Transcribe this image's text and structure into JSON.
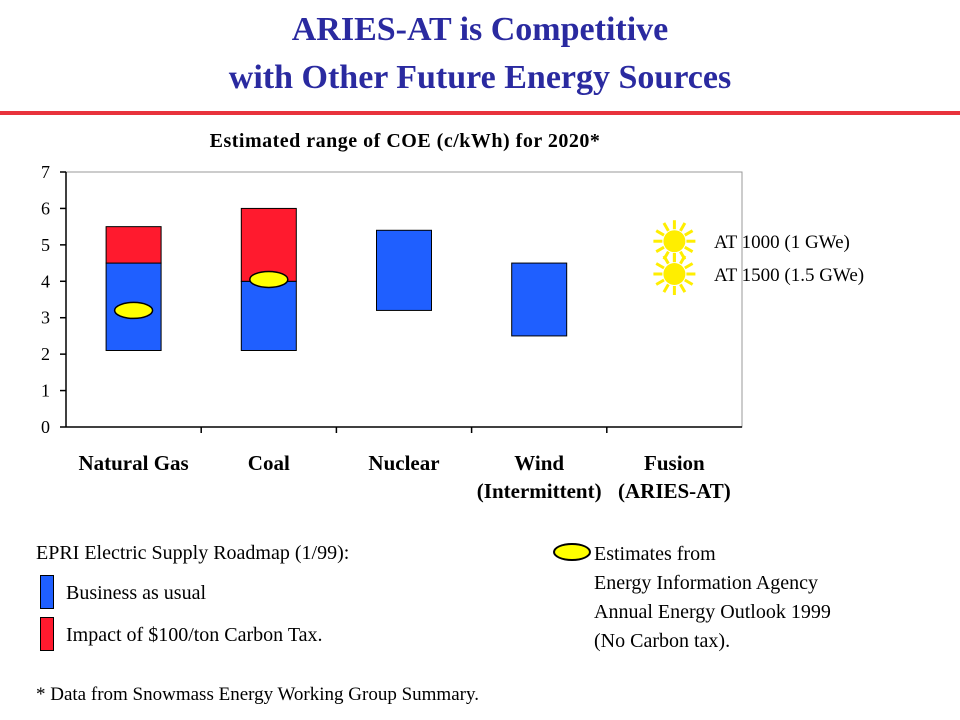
{
  "header": {
    "title_line1": "ARIES-AT is Competitive",
    "title_line2": "with Other Future Energy Sources"
  },
  "colors": {
    "title": "#2a2aa0",
    "rule": "#e8323c",
    "business_as_usual": "#1f5fff",
    "carbon_tax": "#ff1a2e",
    "estimate": "#ffff00",
    "sun": "#ffee00"
  },
  "chart_data": {
    "type": "bar",
    "title": "Estimated range of COE (c/kWh) for 2020*",
    "xlabel": "",
    "ylabel": "",
    "ylim": [
      0,
      7
    ],
    "yticks": [
      "0",
      "1",
      "2",
      "3",
      "4",
      "5",
      "6",
      "7"
    ],
    "categories": [
      "Natural Gas",
      "Coal",
      "Nuclear",
      "Wind (Intermittent)",
      "Fusion (ARIES-AT)"
    ],
    "category_labels": [
      [
        "Natural Gas"
      ],
      [
        "Coal"
      ],
      [
        "Nuclear"
      ],
      [
        "Wind",
        "(Intermittent)"
      ],
      [
        "Fusion",
        "(ARIES-AT)"
      ]
    ],
    "series": [
      {
        "name": "Business as usual",
        "ranges": [
          [
            2.1,
            4.5
          ],
          [
            2.1,
            4.0
          ],
          [
            3.2,
            5.4
          ],
          [
            2.5,
            4.5
          ],
          null
        ]
      },
      {
        "name": "Impact of $100/ton Carbon Tax.",
        "ranges": [
          [
            4.5,
            5.5
          ],
          [
            4.0,
            6.0
          ],
          null,
          null,
          null
        ]
      }
    ],
    "estimates": [
      3.2,
      4.05,
      null,
      null,
      null
    ],
    "fusion_points": [
      {
        "label": "AT 1000 (1 GWe)",
        "value": 5.1
      },
      {
        "label": "AT 1500 (1.5 GWe)",
        "value": 4.2
      }
    ],
    "grid": false
  },
  "legend": {
    "source": "EPRI Electric Supply Roadmap (1/99):",
    "business": "Business as usual",
    "carbon": "Impact of $100/ton Carbon Tax.",
    "estimates_lines": [
      "Estimates from",
      "Energy Information Agency",
      "Annual Energy Outlook 1999",
      "(No Carbon tax)."
    ]
  },
  "footnote": "* Data from Snowmass Energy Working Group Summary."
}
